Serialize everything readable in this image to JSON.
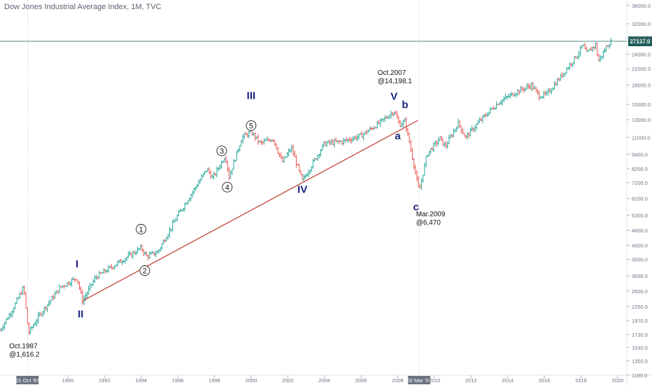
{
  "chart_data": {
    "type": "ohlc",
    "title": "Dow Jones Industrial Average Index, 1M, TVC",
    "ylabel": "",
    "xlabel": "",
    "y_scale": "log",
    "ylim": [
      1180,
      40000
    ],
    "xlim": [
      1986.3,
      2020.5
    ],
    "y_ticks": [
      "1180.0",
      "1350.0",
      "1530.0",
      "1730.0",
      "1970.0",
      "2250.0",
      "2600.0",
      "3000.0",
      "3500.0",
      "4000.0",
      "4600.0",
      "5300.0",
      "6200.0",
      "7200.0",
      "8200.0",
      "9400.0",
      "11000.0",
      "13000.0",
      "15000.0",
      "18000.0",
      "21000.0",
      "24000.0",
      "28000.0",
      "32000.0",
      "38000.0"
    ],
    "x_ticks": [
      "1990",
      "1992",
      "1994",
      "1996",
      "1998",
      "2000",
      "2002",
      "2004",
      "2006",
      "2008",
      "2010",
      "2012",
      "2014",
      "2016",
      "2018",
      "2020"
    ],
    "price_path": [
      {
        "x": 1986.3,
        "y": 1800
      },
      {
        "x": 1987.0,
        "y": 2200
      },
      {
        "x": 1987.6,
        "y": 2700
      },
      {
        "x": 1987.85,
        "y": 1750
      },
      {
        "x": 1988.5,
        "y": 2100
      },
      {
        "x": 1989.6,
        "y": 2700
      },
      {
        "x": 1990.5,
        "y": 2950
      },
      {
        "x": 1990.8,
        "y": 2370
      },
      {
        "x": 1991.5,
        "y": 2950
      },
      {
        "x": 1992.5,
        "y": 3300
      },
      {
        "x": 1994.0,
        "y": 3900
      },
      {
        "x": 1994.3,
        "y": 3600
      },
      {
        "x": 1994.9,
        "y": 3750
      },
      {
        "x": 1996.0,
        "y": 5300
      },
      {
        "x": 1997.6,
        "y": 8200
      },
      {
        "x": 1997.9,
        "y": 7500
      },
      {
        "x": 1998.6,
        "y": 9300
      },
      {
        "x": 1998.8,
        "y": 7600
      },
      {
        "x": 1999.5,
        "y": 11000
      },
      {
        "x": 2000.0,
        "y": 11600
      },
      {
        "x": 2000.5,
        "y": 10400
      },
      {
        "x": 2001.2,
        "y": 10900
      },
      {
        "x": 2001.7,
        "y": 8700
      },
      {
        "x": 2002.2,
        "y": 10000
      },
      {
        "x": 2002.8,
        "y": 7300
      },
      {
        "x": 2003.5,
        "y": 9000
      },
      {
        "x": 2004.0,
        "y": 10400
      },
      {
        "x": 2005.0,
        "y": 10600
      },
      {
        "x": 2006.0,
        "y": 11200
      },
      {
        "x": 2007.0,
        "y": 12600
      },
      {
        "x": 2007.8,
        "y": 14100
      },
      {
        "x": 2008.1,
        "y": 12400
      },
      {
        "x": 2008.4,
        "y": 12800
      },
      {
        "x": 2008.9,
        "y": 8400
      },
      {
        "x": 2009.17,
        "y": 6600
      },
      {
        "x": 2009.6,
        "y": 9400
      },
      {
        "x": 2010.3,
        "y": 10900
      },
      {
        "x": 2010.6,
        "y": 10100
      },
      {
        "x": 2011.3,
        "y": 12600
      },
      {
        "x": 2011.7,
        "y": 11000
      },
      {
        "x": 2012.5,
        "y": 12900
      },
      {
        "x": 2013.5,
        "y": 15300
      },
      {
        "x": 2014.5,
        "y": 16900
      },
      {
        "x": 2015.3,
        "y": 18000
      },
      {
        "x": 2015.7,
        "y": 16300
      },
      {
        "x": 2016.1,
        "y": 16400
      },
      {
        "x": 2016.9,
        "y": 19500
      },
      {
        "x": 2017.9,
        "y": 24500
      },
      {
        "x": 2018.1,
        "y": 26200
      },
      {
        "x": 2018.3,
        "y": 24200
      },
      {
        "x": 2018.8,
        "y": 26300
      },
      {
        "x": 2018.95,
        "y": 22500
      },
      {
        "x": 2019.5,
        "y": 26600
      },
      {
        "x": 2019.7,
        "y": 27137
      }
    ],
    "trendline": {
      "from": {
        "x": 1990.8,
        "y": 2370
      },
      "to": {
        "x": 2009.1,
        "y": 12900
      }
    },
    "last_price": {
      "value": 27137.0,
      "label": "27137.0"
    },
    "vertical_markers": [
      {
        "x": 1987.8,
        "label": "01 Oct '87"
      },
      {
        "x": 2009.17,
        "label": "02 Mar '09"
      }
    ],
    "wave_labels": [
      {
        "text": "I",
        "x": 1990.5,
        "y": 3250,
        "kind": "major"
      },
      {
        "text": "II",
        "x": 1990.7,
        "y": 2030,
        "kind": "major"
      },
      {
        "text": "III",
        "x": 2000.0,
        "y": 15800,
        "kind": "major"
      },
      {
        "text": "IV",
        "x": 2002.8,
        "y": 6550,
        "kind": "major"
      },
      {
        "text": "V",
        "x": 2007.8,
        "y": 15700,
        "kind": "major"
      },
      {
        "text": "a",
        "x": 2008.0,
        "y": 10800,
        "kind": "minor"
      },
      {
        "text": "b",
        "x": 2008.4,
        "y": 14500,
        "kind": "minor"
      },
      {
        "text": "c",
        "x": 2009.0,
        "y": 5550,
        "kind": "minor"
      },
      {
        "text": "1",
        "x": 1994.0,
        "y": 4650,
        "kind": "circle"
      },
      {
        "text": "2",
        "x": 1994.2,
        "y": 3150,
        "kind": "circle"
      },
      {
        "text": "3",
        "x": 1998.4,
        "y": 9700,
        "kind": "circle"
      },
      {
        "text": "4",
        "x": 1998.7,
        "y": 6900,
        "kind": "circle"
      },
      {
        "text": "5",
        "x": 2000.0,
        "y": 12300,
        "kind": "circle"
      }
    ],
    "annotations": [
      {
        "lines": [
          "Oct.2007",
          "@14,198.1"
        ],
        "x": 2006.9,
        "y": 19800
      },
      {
        "lines": [
          "Mar.2009",
          "@6,470"
        ],
        "x": 2009.0,
        "y": 5250
      },
      {
        "lines": [
          "Oct.1987",
          "@1,616.2"
        ],
        "x": 1986.8,
        "y": 1520
      }
    ],
    "colors": {
      "up": "#26a69a",
      "down": "#ef5350",
      "trendline": "#c0392b",
      "wave": "#1a237e",
      "last_price_bg": "#1b5e57",
      "crosshair": "#9aa4b1"
    }
  }
}
